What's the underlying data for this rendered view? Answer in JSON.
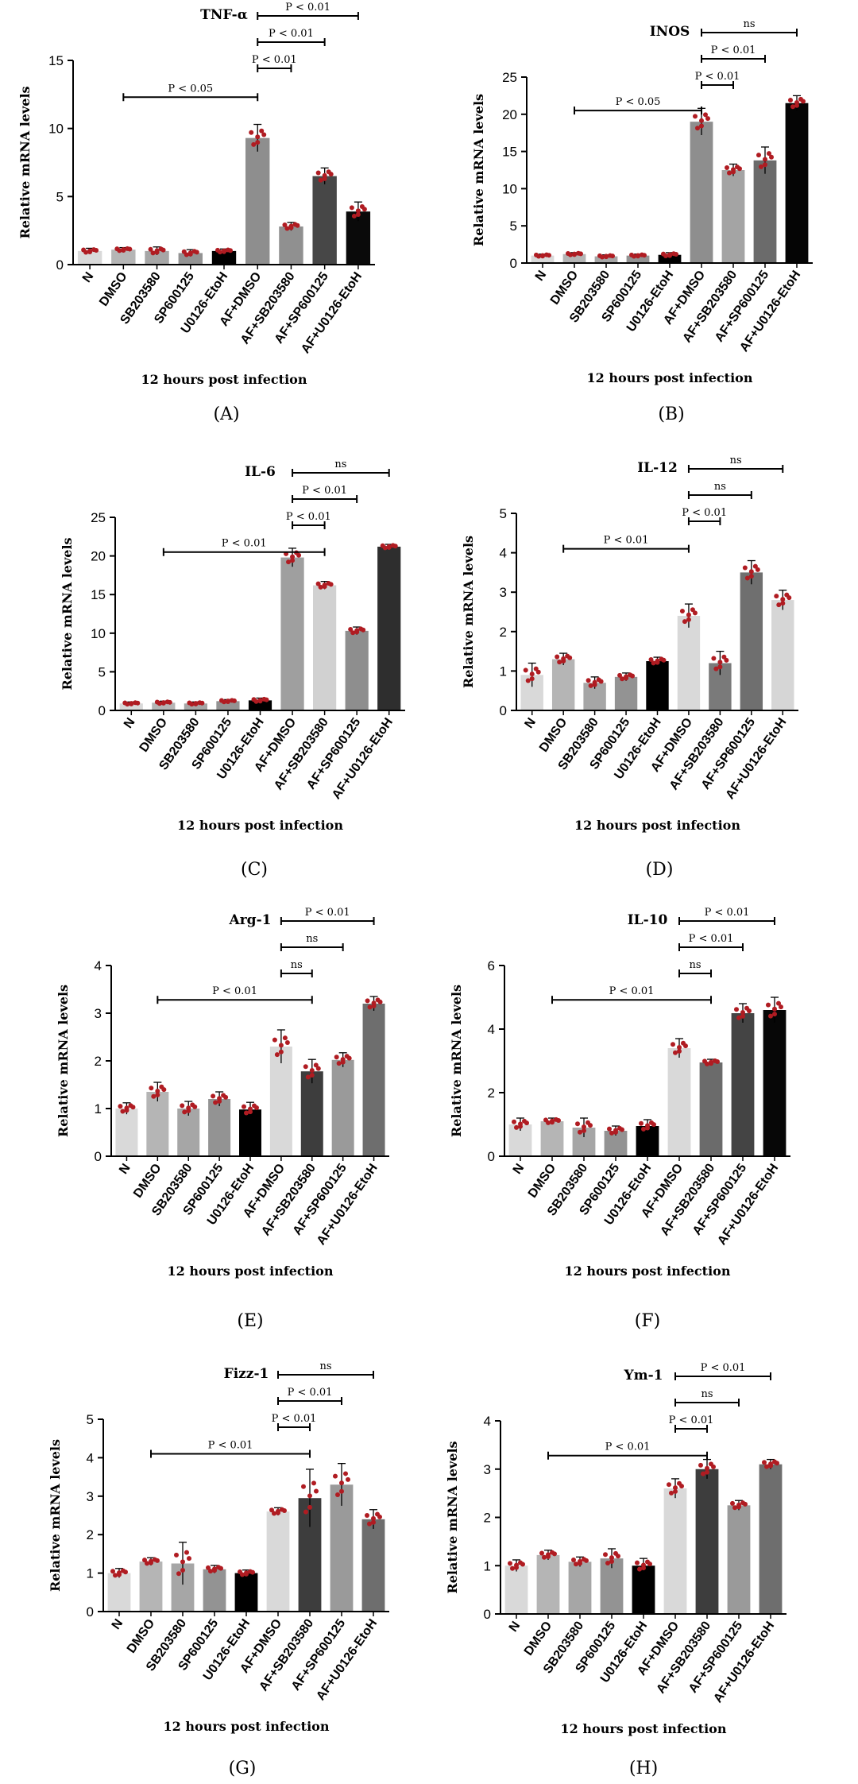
{
  "categories": [
    "N",
    "DMSO",
    "SB203580",
    "SP600125",
    "U0126-EtoH",
    "AF+DMSO",
    "AF+SB203580",
    "AF+SP600125",
    "AF+U0126-EtoH"
  ],
  "ylabel": "Relative  mRNA levels",
  "xlabel": "12 hours post infection",
  "colors": {
    "dot": "#b01c22",
    "axis": "#000000"
  },
  "chart_data": [
    {
      "panel": "(A)",
      "type": "bar",
      "title": "TNF-α",
      "ylim": [
        0,
        15
      ],
      "yticks": [
        0,
        5,
        10,
        15
      ],
      "values": [
        1.0,
        1.1,
        1.0,
        0.85,
        1.0,
        9.3,
        2.8,
        6.5,
        3.9
      ],
      "errors": [
        0.2,
        0.15,
        0.3,
        0.25,
        0.15,
        1.0,
        0.3,
        0.6,
        0.7
      ],
      "colors": [
        "#d9d9d9",
        "#b5b5b5",
        "#a6a6a6",
        "#939393",
        "#000000",
        "#8e8e8e",
        "#909090",
        "#474747",
        "#0a0a0a"
      ],
      "comparisons": [
        {
          "label": "P < 0.05",
          "from": 1,
          "to": 5
        },
        {
          "label": "P < 0.01",
          "from": 5,
          "to": 6
        },
        {
          "label": "P < 0.01",
          "from": 5,
          "to": 7
        },
        {
          "label": "P < 0.01",
          "from": 5,
          "to": 8
        }
      ]
    },
    {
      "panel": "(B)",
      "type": "bar",
      "title": "INOS",
      "ylim": [
        0,
        25
      ],
      "yticks": [
        0,
        5,
        10,
        15,
        20,
        25
      ],
      "values": [
        1.0,
        1.2,
        0.9,
        1.0,
        1.1,
        19.0,
        12.5,
        13.8,
        21.5
      ],
      "errors": [
        0.2,
        0.2,
        0.2,
        0.2,
        0.3,
        1.8,
        0.8,
        1.8,
        1.0
      ],
      "colors": [
        "#d9d9d9",
        "#b5b5b5",
        "#a6a6a6",
        "#939393",
        "#000000",
        "#8e8e8e",
        "#a4a4a4",
        "#6b6b6b",
        "#050505"
      ],
      "comparisons": [
        {
          "label": "P < 0.05",
          "from": 1,
          "to": 5
        },
        {
          "label": "P < 0.01",
          "from": 5,
          "to": 6
        },
        {
          "label": "P < 0.01",
          "from": 5,
          "to": 7
        },
        {
          "label": "ns",
          "from": 5,
          "to": 8
        }
      ]
    },
    {
      "panel": "(C)",
      "type": "bar",
      "title": "IL-6",
      "ylim": [
        0,
        25
      ],
      "yticks": [
        0,
        5,
        10,
        15,
        20,
        25
      ],
      "values": [
        0.9,
        1.0,
        0.9,
        1.2,
        1.3,
        19.8,
        16.2,
        10.3,
        21.2
      ],
      "errors": [
        0.2,
        0.2,
        0.2,
        0.2,
        0.3,
        1.2,
        0.5,
        0.5,
        0.3
      ],
      "colors": [
        "#d9d9d9",
        "#b5b5b5",
        "#a6a6a6",
        "#939393",
        "#000000",
        "#9f9f9f",
        "#d1d1d1",
        "#8e8e8e",
        "#2e2e2e"
      ],
      "comparisons": [
        {
          "label": "P < 0.01",
          "from": 1,
          "to": 6
        },
        {
          "label": "P < 0.01",
          "from": 5,
          "to": 6
        },
        {
          "label": "P < 0.01",
          "from": 5,
          "to": 7
        },
        {
          "label": "ns",
          "from": 5,
          "to": 8
        }
      ]
    },
    {
      "panel": "(D)",
      "type": "bar",
      "title": "IL-12",
      "ylim": [
        0,
        5
      ],
      "yticks": [
        0,
        1,
        2,
        3,
        4,
        5
      ],
      "values": [
        0.9,
        1.3,
        0.7,
        0.85,
        1.25,
        2.4,
        1.2,
        3.5,
        2.8
      ],
      "errors": [
        0.3,
        0.15,
        0.15,
        0.1,
        0.1,
        0.3,
        0.3,
        0.3,
        0.25
      ],
      "colors": [
        "#d9d9d9",
        "#b5b5b5",
        "#a6a6a6",
        "#939393",
        "#000000",
        "#d9d9d9",
        "#7a7a7a",
        "#6f6f6f",
        "#d6d6d6"
      ],
      "comparisons": [
        {
          "label": "P < 0.01",
          "from": 1,
          "to": 5
        },
        {
          "label": "P < 0.01",
          "from": 5,
          "to": 6
        },
        {
          "label": "ns",
          "from": 5,
          "to": 7
        },
        {
          "label": "ns",
          "from": 5,
          "to": 8
        }
      ]
    },
    {
      "panel": "(E)",
      "type": "bar",
      "title": "Arg-1",
      "ylim": [
        0,
        4
      ],
      "yticks": [
        0,
        1,
        2,
        3,
        4
      ],
      "values": [
        1.0,
        1.35,
        1.0,
        1.2,
        0.98,
        2.3,
        1.78,
        2.02,
        3.2
      ],
      "errors": [
        0.12,
        0.2,
        0.15,
        0.15,
        0.15,
        0.35,
        0.25,
        0.15,
        0.15
      ],
      "colors": [
        "#d9d9d9",
        "#b5b5b5",
        "#a6a6a6",
        "#939393",
        "#000000",
        "#d9d9d9",
        "#3d3d3d",
        "#9a9a9a",
        "#6e6e6e"
      ],
      "comparisons": [
        {
          "label": "P < 0.01",
          "from": 1,
          "to": 6
        },
        {
          "label": "ns",
          "from": 5,
          "to": 6
        },
        {
          "label": "ns",
          "from": 5,
          "to": 7
        },
        {
          "label": "P < 0.01",
          "from": 5,
          "to": 8
        }
      ]
    },
    {
      "panel": "(F)",
      "type": "bar",
      "title": "IL-10",
      "ylim": [
        0,
        6
      ],
      "yticks": [
        0,
        2,
        4,
        6
      ],
      "values": [
        1.0,
        1.1,
        0.9,
        0.8,
        0.95,
        3.4,
        2.95,
        4.5,
        4.6
      ],
      "errors": [
        0.2,
        0.1,
        0.3,
        0.15,
        0.2,
        0.3,
        0.1,
        0.3,
        0.4
      ],
      "colors": [
        "#d9d9d9",
        "#b5b5b5",
        "#a6a6a6",
        "#939393",
        "#000000",
        "#d9d9d9",
        "#6b6b6b",
        "#444444",
        "#070707"
      ],
      "comparisons": [
        {
          "label": "P < 0.01",
          "from": 1,
          "to": 6
        },
        {
          "label": "ns",
          "from": 5,
          "to": 6
        },
        {
          "label": "P < 0.01",
          "from": 5,
          "to": 7
        },
        {
          "label": "P < 0.01",
          "from": 5,
          "to": 8
        }
      ]
    },
    {
      "panel": "(G)",
      "type": "bar",
      "title": "Fizz-1",
      "ylim": [
        0,
        5
      ],
      "yticks": [
        0,
        1,
        2,
        3,
        4,
        5
      ],
      "values": [
        1.0,
        1.3,
        1.25,
        1.1,
        1.0,
        2.6,
        2.95,
        3.3,
        2.4
      ],
      "errors": [
        0.12,
        0.1,
        0.55,
        0.1,
        0.08,
        0.1,
        0.75,
        0.55,
        0.25
      ],
      "colors": [
        "#d9d9d9",
        "#b5b5b5",
        "#a6a6a6",
        "#939393",
        "#000000",
        "#d9d9d9",
        "#3d3d3d",
        "#9a9a9a",
        "#6e6e6e"
      ],
      "comparisons": [
        {
          "label": "P < 0.01",
          "from": 1,
          "to": 6
        },
        {
          "label": "P < 0.01",
          "from": 5,
          "to": 6
        },
        {
          "label": "P < 0.01",
          "from": 5,
          "to": 7
        },
        {
          "label": "ns",
          "from": 5,
          "to": 8
        }
      ]
    },
    {
      "panel": "(H)",
      "type": "bar",
      "title": "Ym-1",
      "ylim": [
        0,
        4
      ],
      "yticks": [
        0,
        1,
        2,
        3,
        4
      ],
      "values": [
        1.0,
        1.22,
        1.08,
        1.15,
        1.0,
        2.6,
        3.0,
        2.25,
        3.1
      ],
      "errors": [
        0.12,
        0.1,
        0.1,
        0.2,
        0.15,
        0.2,
        0.2,
        0.1,
        0.1
      ],
      "colors": [
        "#d9d9d9",
        "#b5b5b5",
        "#a6a6a6",
        "#939393",
        "#000000",
        "#d9d9d9",
        "#3d3d3d",
        "#9a9a9a",
        "#6e6e6e"
      ],
      "comparisons": [
        {
          "label": "P < 0.01",
          "from": 1,
          "to": 6
        },
        {
          "label": "P < 0.01",
          "from": 5,
          "to": 6
        },
        {
          "label": "ns",
          "from": 5,
          "to": 7
        },
        {
          "label": "P < 0.01",
          "from": 5,
          "to": 8
        }
      ]
    }
  ]
}
